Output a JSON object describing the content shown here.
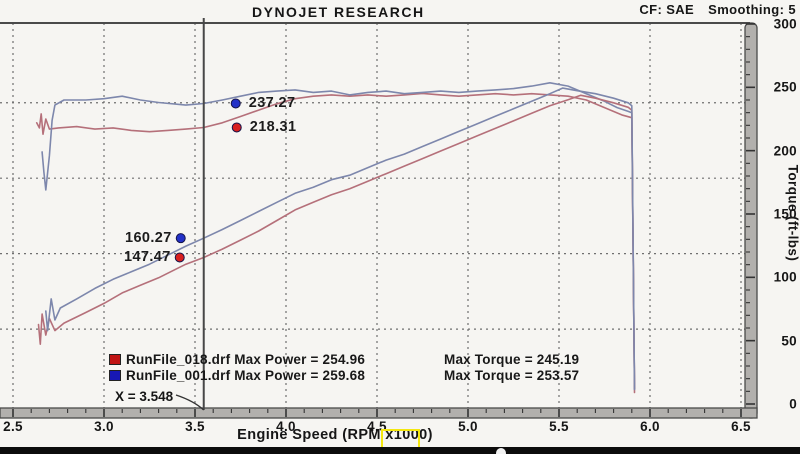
{
  "header": {
    "title": "DYNOJET RESEARCH",
    "cf_label": "CF: SAE",
    "smoothing_label": "Smoothing: 5"
  },
  "chart_data": {
    "type": "line",
    "title": "DYNOJET RESEARCH",
    "correction_factor": "CF: SAE",
    "smoothing": "Smoothing: 5",
    "x_axis": {
      "label": "Engine Speed (RPM x1000)",
      "min": 2.5,
      "max": 6.5,
      "ticks": [
        "2.5",
        "3.0",
        "3.5",
        "4.0",
        "4.5",
        "5.0",
        "5.5",
        "6.0",
        "6.5"
      ]
    },
    "right_y_axis": {
      "label": "Torque (ft-lbs)",
      "min": 0,
      "max": 300,
      "ticks": [
        "300",
        "250",
        "200",
        "150",
        "100",
        "50",
        "0"
      ]
    },
    "h_gridlines_power_hp": [
      250,
      200,
      150,
      100
    ],
    "grid": "dashed",
    "series": [
      {
        "name": "RunFile_018.drf Torque",
        "slug": "torque-018",
        "unit": "ft-lbs",
        "color": "#b5707a",
        "points": [
          [
            2.63,
            222
          ],
          [
            2.645,
            218
          ],
          [
            2.655,
            229
          ],
          [
            2.665,
            213
          ],
          [
            2.68,
            225
          ],
          [
            2.7,
            217
          ],
          [
            2.75,
            218
          ],
          [
            2.85,
            219
          ],
          [
            2.95,
            217
          ],
          [
            3.05,
            218
          ],
          [
            3.15,
            216
          ],
          [
            3.25,
            215
          ],
          [
            3.35,
            216
          ],
          [
            3.45,
            217
          ],
          [
            3.548,
            218.31
          ],
          [
            3.65,
            222
          ],
          [
            3.75,
            227
          ],
          [
            3.85,
            232
          ],
          [
            3.95,
            237
          ],
          [
            4.05,
            241
          ],
          [
            4.15,
            243
          ],
          [
            4.25,
            244
          ],
          [
            4.35,
            243
          ],
          [
            4.45,
            244
          ],
          [
            4.55,
            243
          ],
          [
            4.65,
            244
          ],
          [
            4.75,
            245.19
          ],
          [
            4.85,
            244
          ],
          [
            4.95,
            243
          ],
          [
            5.05,
            244
          ],
          [
            5.15,
            245
          ],
          [
            5.25,
            244
          ],
          [
            5.35,
            245
          ],
          [
            5.45,
            244
          ],
          [
            5.55,
            243
          ],
          [
            5.65,
            240
          ],
          [
            5.75,
            234
          ],
          [
            5.85,
            228
          ],
          [
            5.9,
            226
          ],
          [
            5.915,
            12
          ]
        ]
      },
      {
        "name": "RunFile_001.drf Torque",
        "slug": "torque-001",
        "unit": "ft-lbs",
        "color": "#7d87ac",
        "points": [
          [
            2.66,
            199
          ],
          [
            2.67,
            183
          ],
          [
            2.68,
            169
          ],
          [
            2.7,
            196
          ],
          [
            2.715,
            224
          ],
          [
            2.73,
            236
          ],
          [
            2.78,
            240
          ],
          [
            2.9,
            240
          ],
          [
            3.0,
            241
          ],
          [
            3.1,
            243
          ],
          [
            3.2,
            240
          ],
          [
            3.3,
            238
          ],
          [
            3.45,
            236
          ],
          [
            3.548,
            237.27
          ],
          [
            3.65,
            240
          ],
          [
            3.75,
            243
          ],
          [
            3.85,
            246
          ],
          [
            3.95,
            247
          ],
          [
            4.05,
            248
          ],
          [
            4.15,
            246
          ],
          [
            4.25,
            247
          ],
          [
            4.35,
            244
          ],
          [
            4.45,
            246
          ],
          [
            4.55,
            247
          ],
          [
            4.65,
            245
          ],
          [
            4.75,
            246
          ],
          [
            4.85,
            247
          ],
          [
            4.95,
            246
          ],
          [
            5.05,
            247
          ],
          [
            5.15,
            248
          ],
          [
            5.25,
            249
          ],
          [
            5.35,
            251
          ],
          [
            5.45,
            253.57
          ],
          [
            5.55,
            251
          ],
          [
            5.65,
            245
          ],
          [
            5.75,
            239
          ],
          [
            5.82,
            234
          ],
          [
            5.88,
            231
          ],
          [
            5.9,
            230
          ],
          [
            5.915,
            12
          ]
        ]
      },
      {
        "name": "RunFile_018.drf Power",
        "slug": "power-018",
        "unit": "hp",
        "color": "#b5707a",
        "points": [
          [
            2.64,
            103
          ],
          [
            2.65,
            90
          ],
          [
            2.66,
            110
          ],
          [
            2.68,
            96
          ],
          [
            2.7,
            107
          ],
          [
            2.73,
            99
          ],
          [
            2.78,
            104
          ],
          [
            2.9,
            111
          ],
          [
            3.0,
            117
          ],
          [
            3.1,
            124
          ],
          [
            3.2,
            129
          ],
          [
            3.3,
            134
          ],
          [
            3.4,
            140
          ],
          [
            3.45,
            143
          ],
          [
            3.548,
            147.47
          ],
          [
            3.65,
            153
          ],
          [
            3.75,
            159
          ],
          [
            3.85,
            165
          ],
          [
            3.95,
            172
          ],
          [
            4.05,
            179
          ],
          [
            4.15,
            184
          ],
          [
            4.25,
            189
          ],
          [
            4.35,
            193
          ],
          [
            4.45,
            198
          ],
          [
            4.55,
            203
          ],
          [
            4.65,
            208
          ],
          [
            4.75,
            213
          ],
          [
            4.85,
            218
          ],
          [
            4.95,
            223
          ],
          [
            5.05,
            228
          ],
          [
            5.15,
            233
          ],
          [
            5.25,
            238
          ],
          [
            5.35,
            243
          ],
          [
            5.45,
            248
          ],
          [
            5.55,
            252
          ],
          [
            5.62,
            254.96
          ],
          [
            5.7,
            253
          ],
          [
            5.8,
            250
          ],
          [
            5.88,
            247
          ],
          [
            5.9,
            245
          ],
          [
            5.915,
            58
          ]
        ]
      },
      {
        "name": "RunFile_001.drf Power",
        "slug": "power-001",
        "unit": "hp",
        "color": "#7d87ac",
        "points": [
          [
            2.68,
            112
          ],
          [
            2.69,
            99
          ],
          [
            2.71,
            120
          ],
          [
            2.73,
            106
          ],
          [
            2.76,
            114
          ],
          [
            2.85,
            120
          ],
          [
            2.95,
            127
          ],
          [
            3.05,
            133
          ],
          [
            3.15,
            138
          ],
          [
            3.25,
            143
          ],
          [
            3.35,
            149
          ],
          [
            3.45,
            155
          ],
          [
            3.548,
            160.27
          ],
          [
            3.65,
            166
          ],
          [
            3.75,
            172
          ],
          [
            3.85,
            178
          ],
          [
            3.95,
            184
          ],
          [
            4.05,
            190
          ],
          [
            4.15,
            194
          ],
          [
            4.25,
            199
          ],
          [
            4.35,
            202
          ],
          [
            4.45,
            207
          ],
          [
            4.55,
            212
          ],
          [
            4.65,
            216
          ],
          [
            4.75,
            221
          ],
          [
            4.85,
            226
          ],
          [
            4.95,
            231
          ],
          [
            5.05,
            236
          ],
          [
            5.15,
            241
          ],
          [
            5.25,
            246
          ],
          [
            5.35,
            251
          ],
          [
            5.45,
            256
          ],
          [
            5.52,
            259.68
          ],
          [
            5.6,
            258
          ],
          [
            5.7,
            256
          ],
          [
            5.8,
            253
          ],
          [
            5.88,
            250
          ],
          [
            5.9,
            248
          ],
          [
            5.915,
            60
          ]
        ]
      }
    ],
    "cursor": {
      "x": 3.548,
      "label": "X = 3.548",
      "values": [
        {
          "text": "237.27",
          "value": 237.27,
          "unit": "ft-lbs",
          "color": "#2331c8",
          "dot_dx": 32,
          "side": "right"
        },
        {
          "text": "218.31",
          "value": 218.31,
          "unit": "ft-lbs",
          "color": "#d81f1f",
          "dot_dx": 33,
          "side": "right"
        },
        {
          "text": "160.27",
          "value": 160.27,
          "unit": "hp",
          "color": "#2331c8",
          "dot_dx": -23,
          "side": "left"
        },
        {
          "text": "147.47",
          "value": 147.47,
          "unit": "hp",
          "color": "#d81f1f",
          "dot_dx": -24,
          "side": "left"
        }
      ]
    },
    "legend": [
      {
        "file": "RunFile_018.drf",
        "max_power": "Max Power = 254.96",
        "max_torque": "Max Torque = 245.19",
        "swatch_color": "#c01414"
      },
      {
        "file": "RunFile_001.drf",
        "max_power": "Max Power = 259.68",
        "max_torque": "Max Torque = 253.57",
        "swatch_color": "#1717b4"
      }
    ],
    "legend_position": "bottom-left"
  },
  "colors": {
    "background": "#f6f5f2",
    "axis_bar_fill": "#b2b0ad",
    "axis_edge": "#4a4a4a",
    "gridline": "#6f6f6f",
    "cursor_line": "#474747",
    "red_curve": "#b5707a",
    "blue_curve": "#7d87ac",
    "highlight_yellow": "#f4e70e",
    "player_bar": "#0c0c0c"
  },
  "player": {
    "progress_dot": "video-progress-dot"
  }
}
